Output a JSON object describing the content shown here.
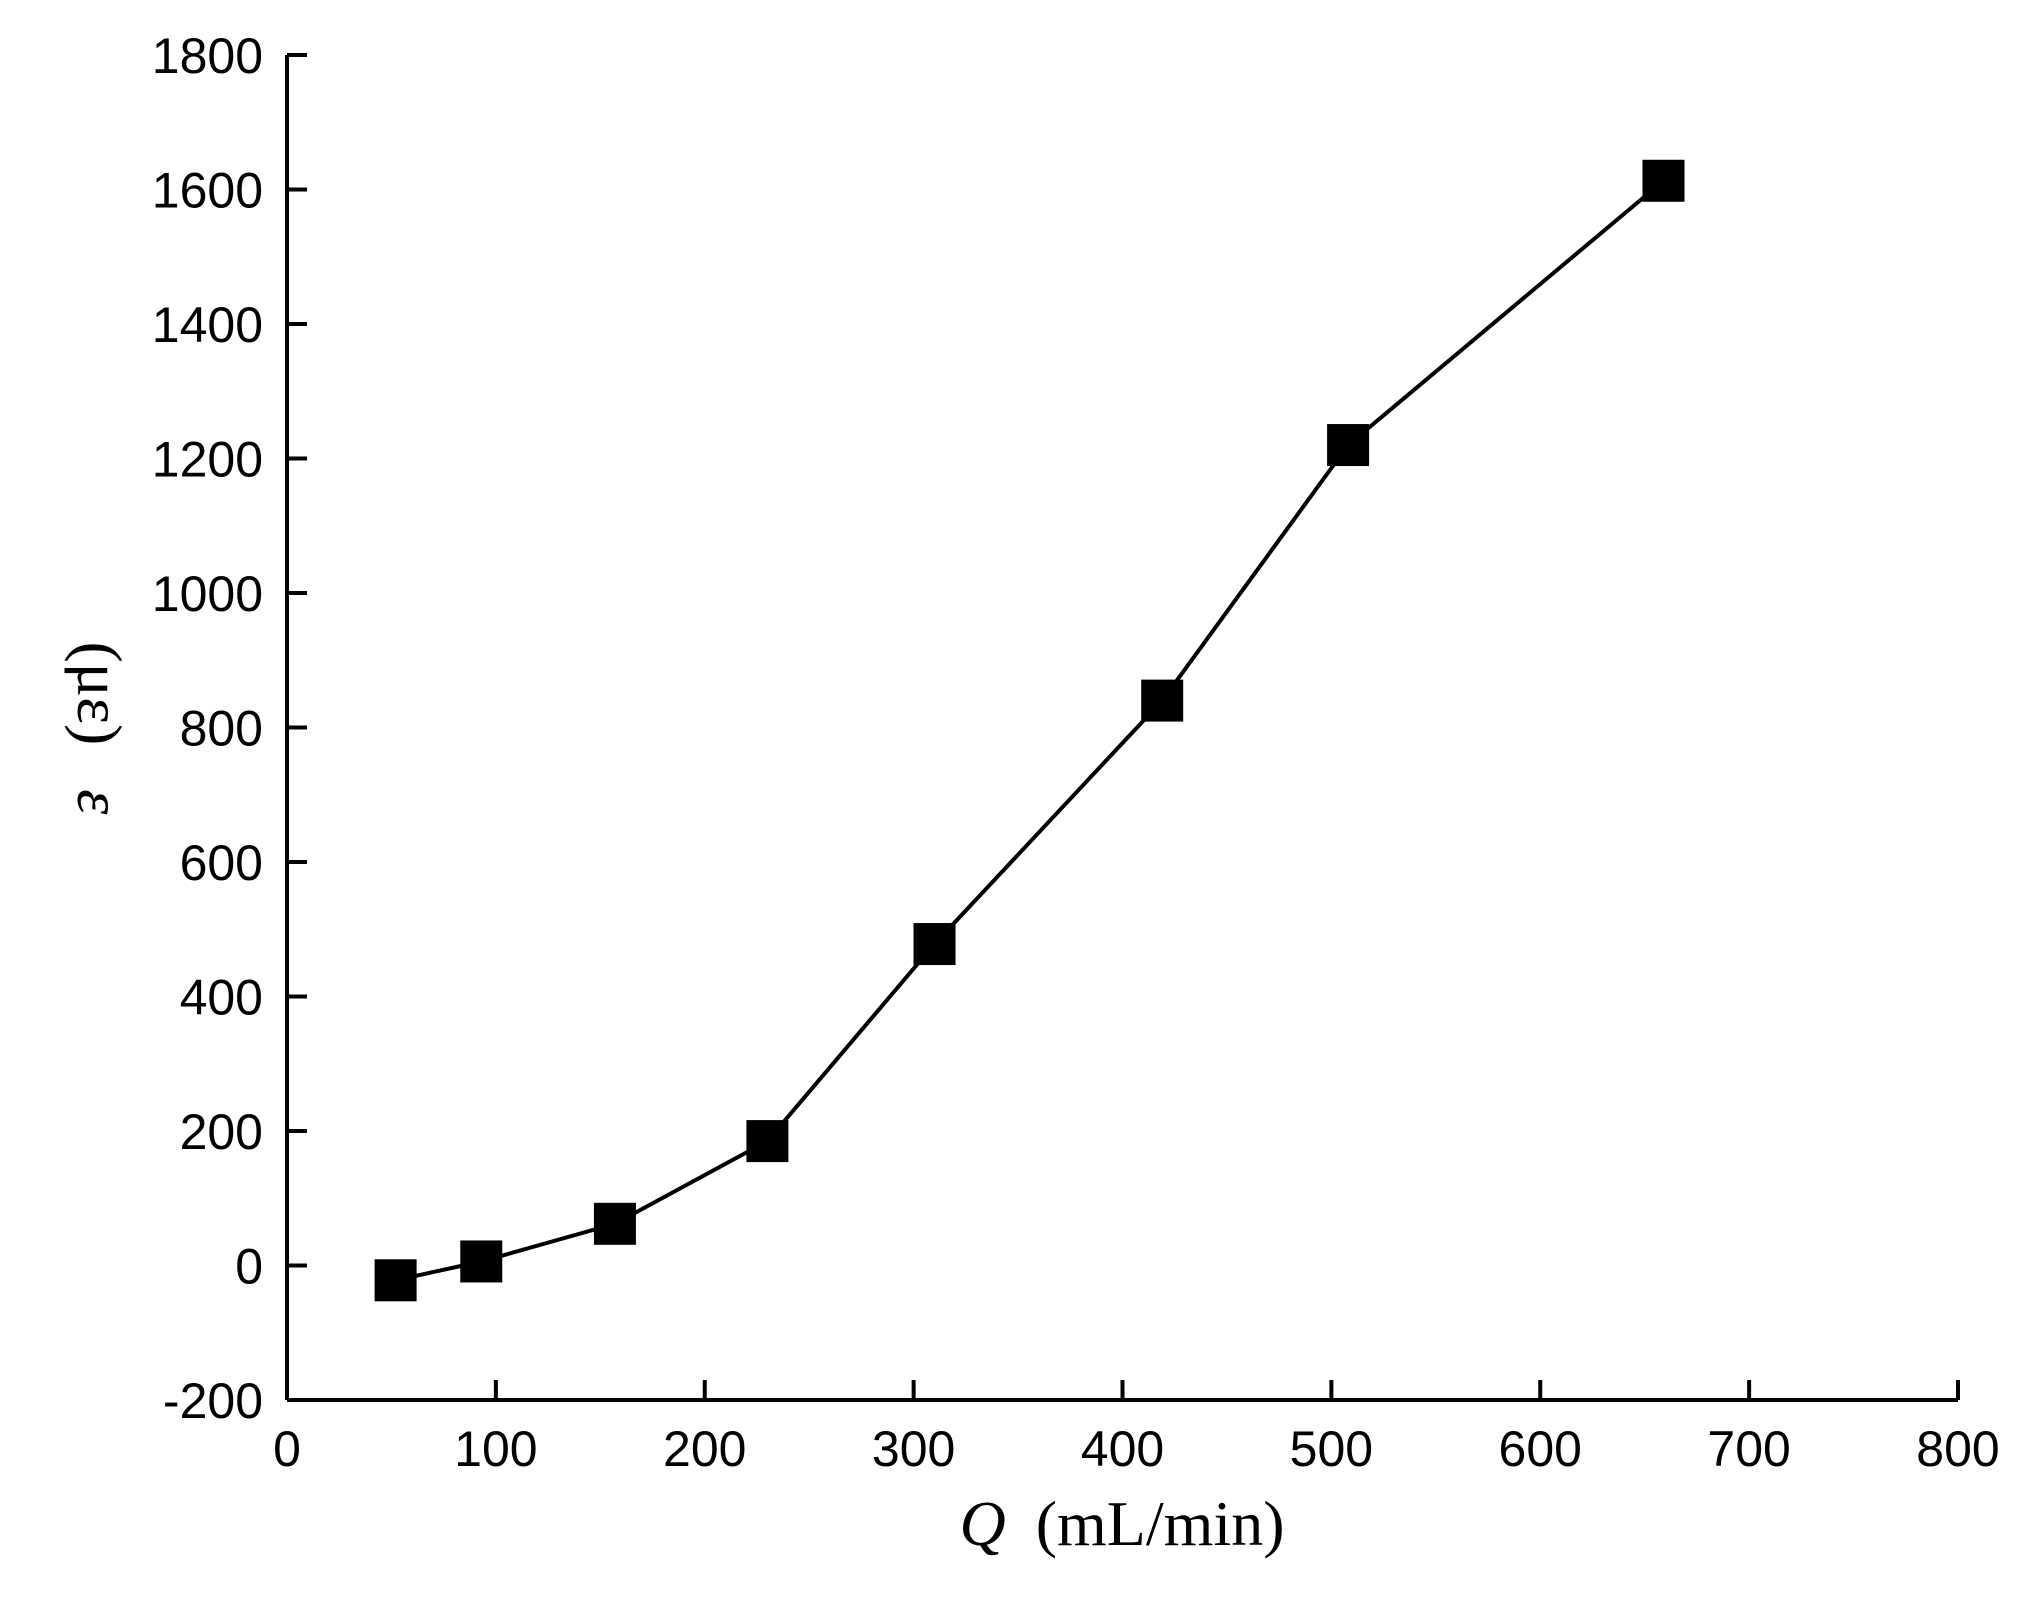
{
  "chart_data": {
    "type": "line",
    "title": "",
    "xlabel": {
      "symbol": "Q",
      "unit": "(mL/min)"
    },
    "ylabel": {
      "symbol": "ε",
      "unit": "(με)"
    },
    "xlim": [
      0,
      800
    ],
    "ylim": [
      -200,
      1800
    ],
    "xticks": [
      0,
      100,
      200,
      300,
      400,
      500,
      600,
      700,
      800
    ],
    "yticks": [
      -200,
      0,
      200,
      400,
      600,
      800,
      1000,
      1200,
      1400,
      1600,
      1800
    ],
    "grid": false,
    "legend": "none",
    "colors": {
      "series": "#000000",
      "axis": "#000000",
      "background": "#ffffff"
    },
    "series": [
      {
        "marker": "square",
        "x": [
          52,
          93,
          157,
          230,
          310,
          419,
          508,
          659
        ],
        "y": [
          -22,
          6,
          62,
          185,
          478,
          840,
          1220,
          1613
        ]
      }
    ]
  }
}
